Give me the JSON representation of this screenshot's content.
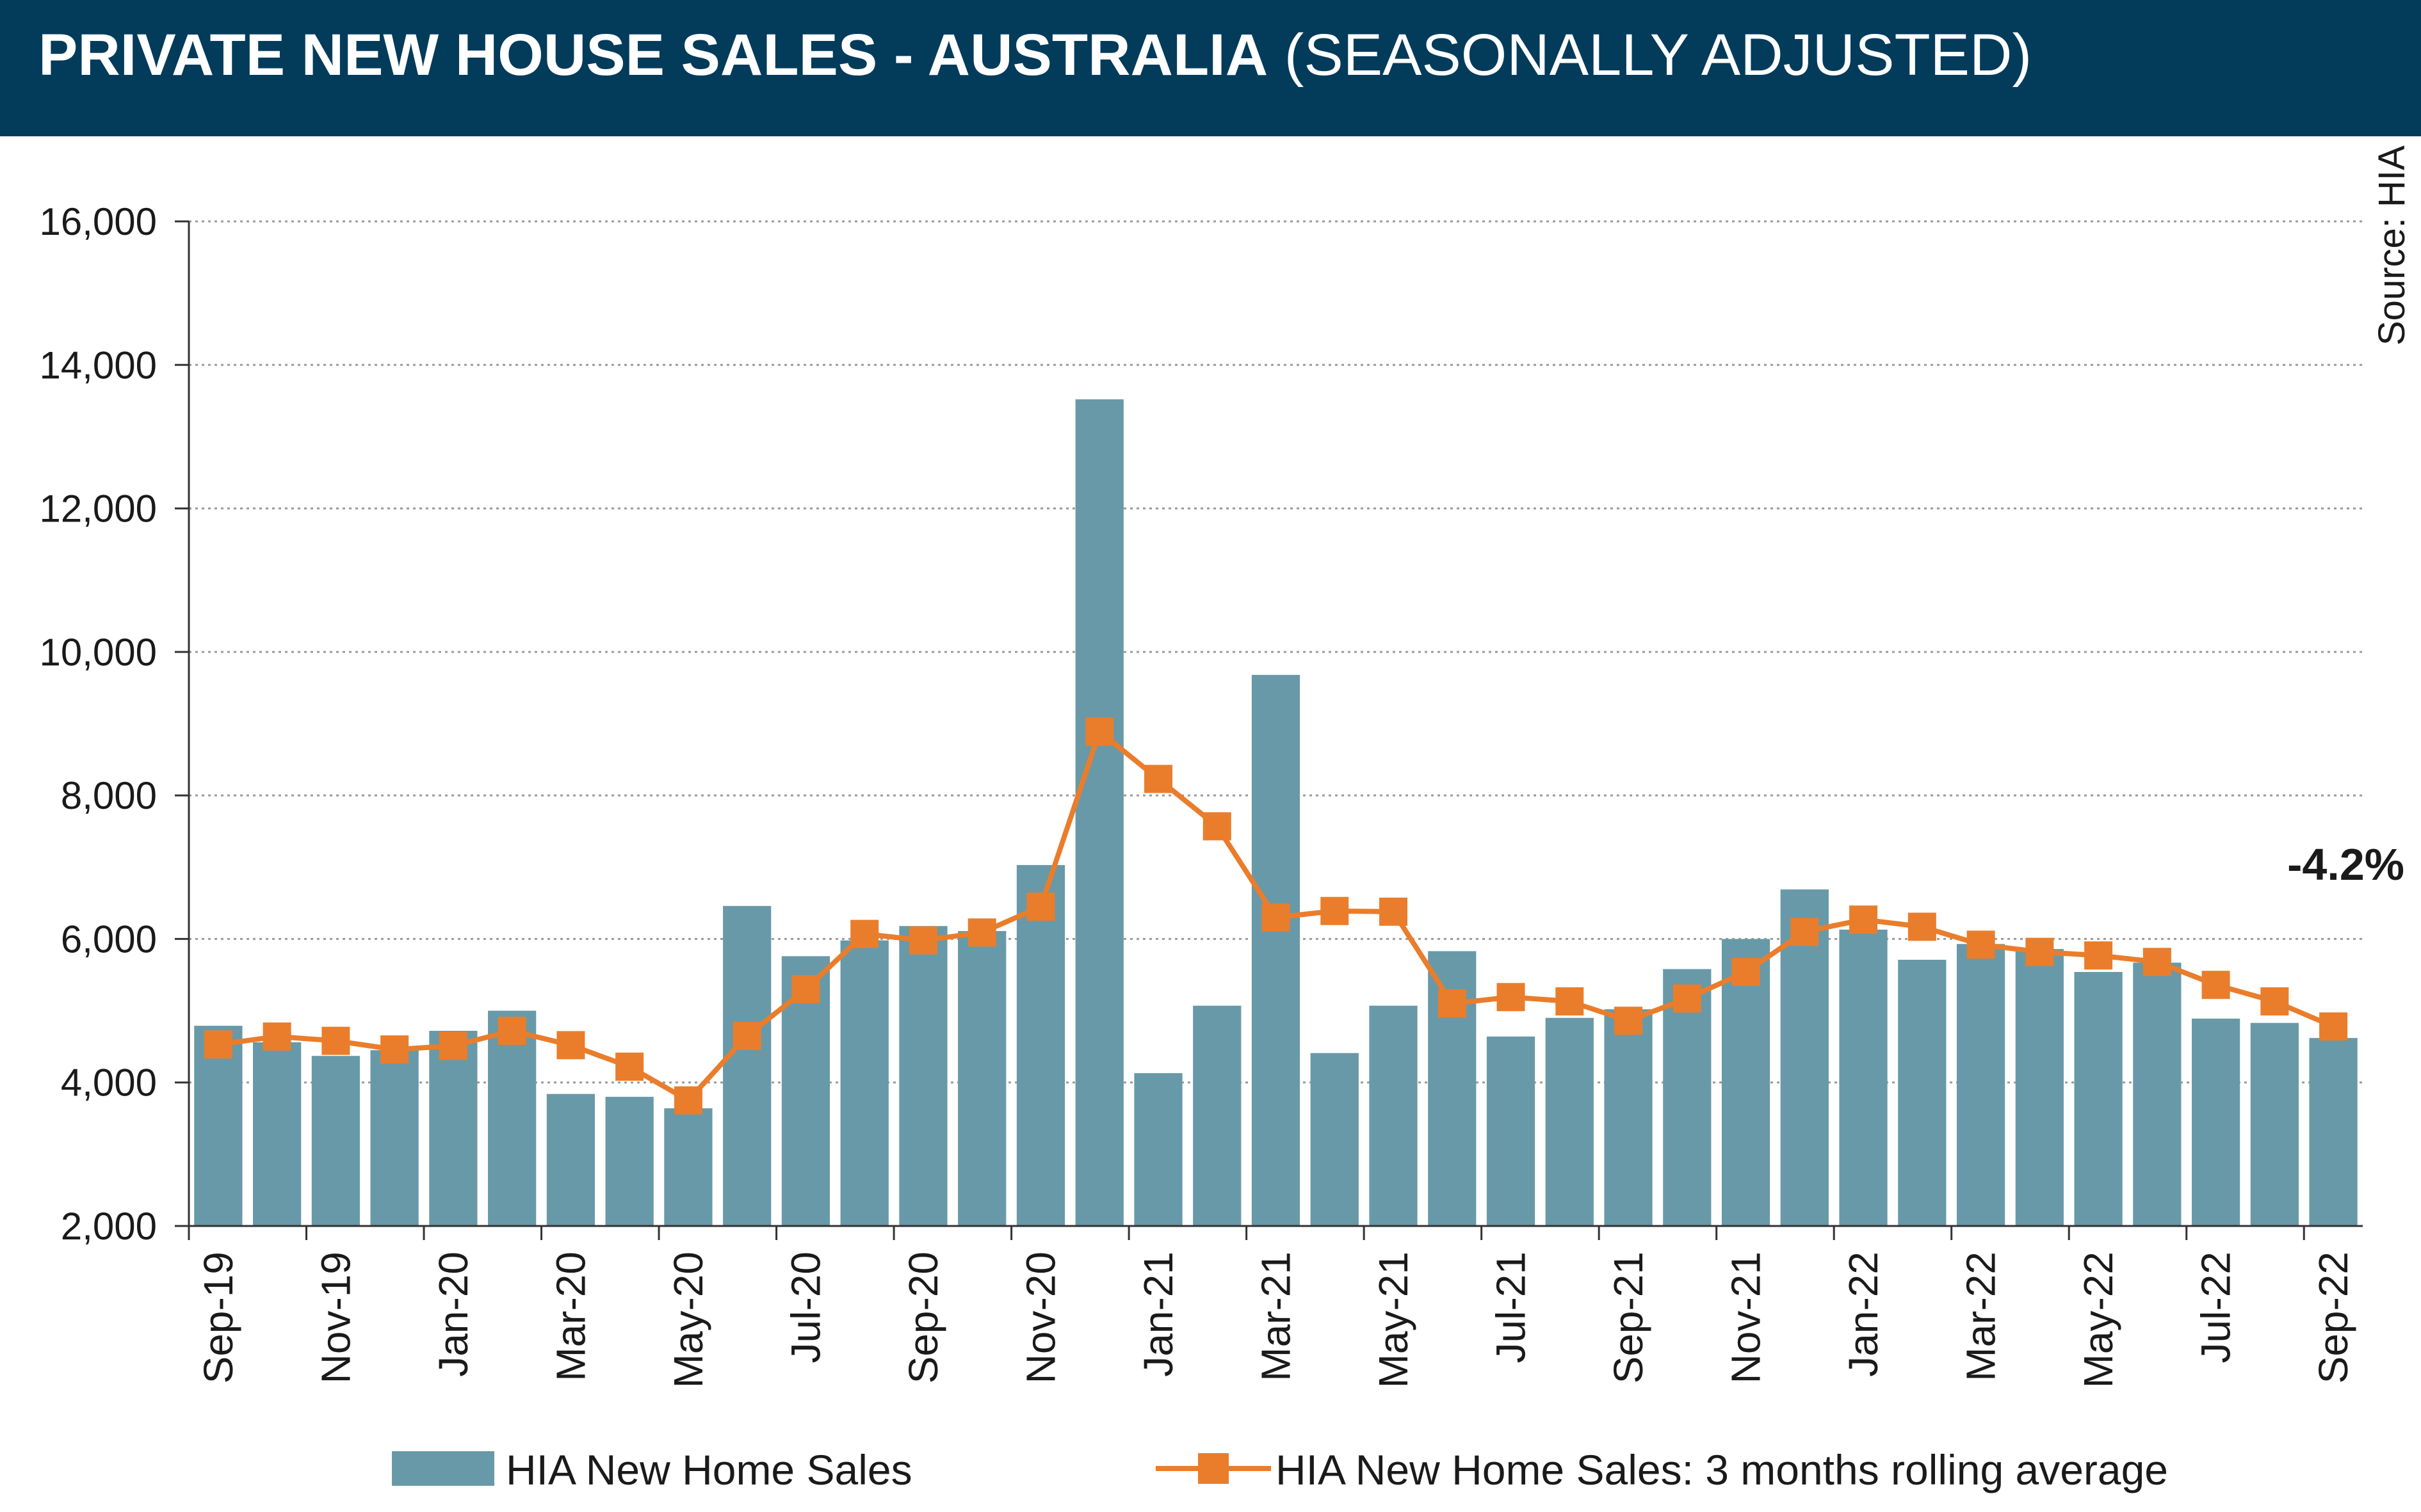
{
  "title": {
    "bold": "PRIVATE NEW HOUSE SALES -  AUSTRALIA",
    "normal": " (SEASONALLY ADJUSTED)"
  },
  "colors": {
    "header_bg": "#033b5b",
    "bar": "#6899a8",
    "line": "#ea7d2b"
  },
  "chart_data": {
    "type": "bar",
    "source": "Source: HIA",
    "annotation": "-4.2%",
    "ylim": [
      2000,
      16000
    ],
    "yticks": [
      2000,
      4000,
      6000,
      8000,
      10000,
      12000,
      14000,
      16000
    ],
    "ytick_labels": [
      "2,000",
      "4,000",
      "6,000",
      "8,000",
      "10,000",
      "12,000",
      "14,000",
      "16,000"
    ],
    "grid": "horizontal dotted",
    "legend_position": "bottom",
    "categories": [
      "Sep-19",
      "Oct-19",
      "Nov-19",
      "Dec-19",
      "Jan-20",
      "Feb-20",
      "Mar-20",
      "Apr-20",
      "May-20",
      "Jun-20",
      "Jul-20",
      "Aug-20",
      "Sep-20",
      "Oct-20",
      "Nov-20",
      "Dec-20",
      "Jan-21",
      "Feb-21",
      "Mar-21",
      "Apr-21",
      "May-21",
      "Jun-21",
      "Jul-21",
      "Aug-21",
      "Sep-21",
      "Oct-21",
      "Nov-21",
      "Dec-21",
      "Jan-22",
      "Feb-22",
      "Mar-22",
      "Apr-22",
      "May-22",
      "Jun-22",
      "Jul-22",
      "Aug-22",
      "Sep-22"
    ],
    "xtick_labels": [
      "Sep-19",
      "Nov-19",
      "Jan-20",
      "Mar-20",
      "May-20",
      "Jul-20",
      "Sep-20",
      "Nov-20",
      "Jan-21",
      "Mar-21",
      "May-21",
      "Jul-21",
      "Sep-21",
      "Nov-21",
      "Jan-22",
      "Mar-22",
      "May-22",
      "Jul-22",
      "Sep-22"
    ],
    "series": [
      {
        "name": "HIA New Home Sales",
        "type": "bar",
        "values": [
          4790,
          4560,
          4370,
          4450,
          4720,
          5000,
          3840,
          3800,
          3640,
          6460,
          5760,
          5980,
          6180,
          6110,
          7030,
          13520,
          4130,
          5070,
          9680,
          4410,
          5070,
          5830,
          4640,
          4900,
          5020,
          5580,
          6000,
          6690,
          6130,
          5710,
          5930,
          5860,
          5540,
          5670,
          4890,
          4830,
          4620
        ]
      },
      {
        "name": "HIA New Home Sales: 3 months rolling average",
        "type": "line",
        "values": [
          4530,
          4640,
          4580,
          4460,
          4510,
          4720,
          4520,
          4220,
          3750,
          4650,
          5300,
          6070,
          5980,
          6090,
          6450,
          8890,
          8230,
          7570,
          6300,
          6390,
          6380,
          5100,
          5190,
          5130,
          4860,
          5170,
          5540,
          6100,
          6270,
          6170,
          5920,
          5820,
          5770,
          5680,
          5360,
          5130,
          4780
        ]
      }
    ]
  }
}
